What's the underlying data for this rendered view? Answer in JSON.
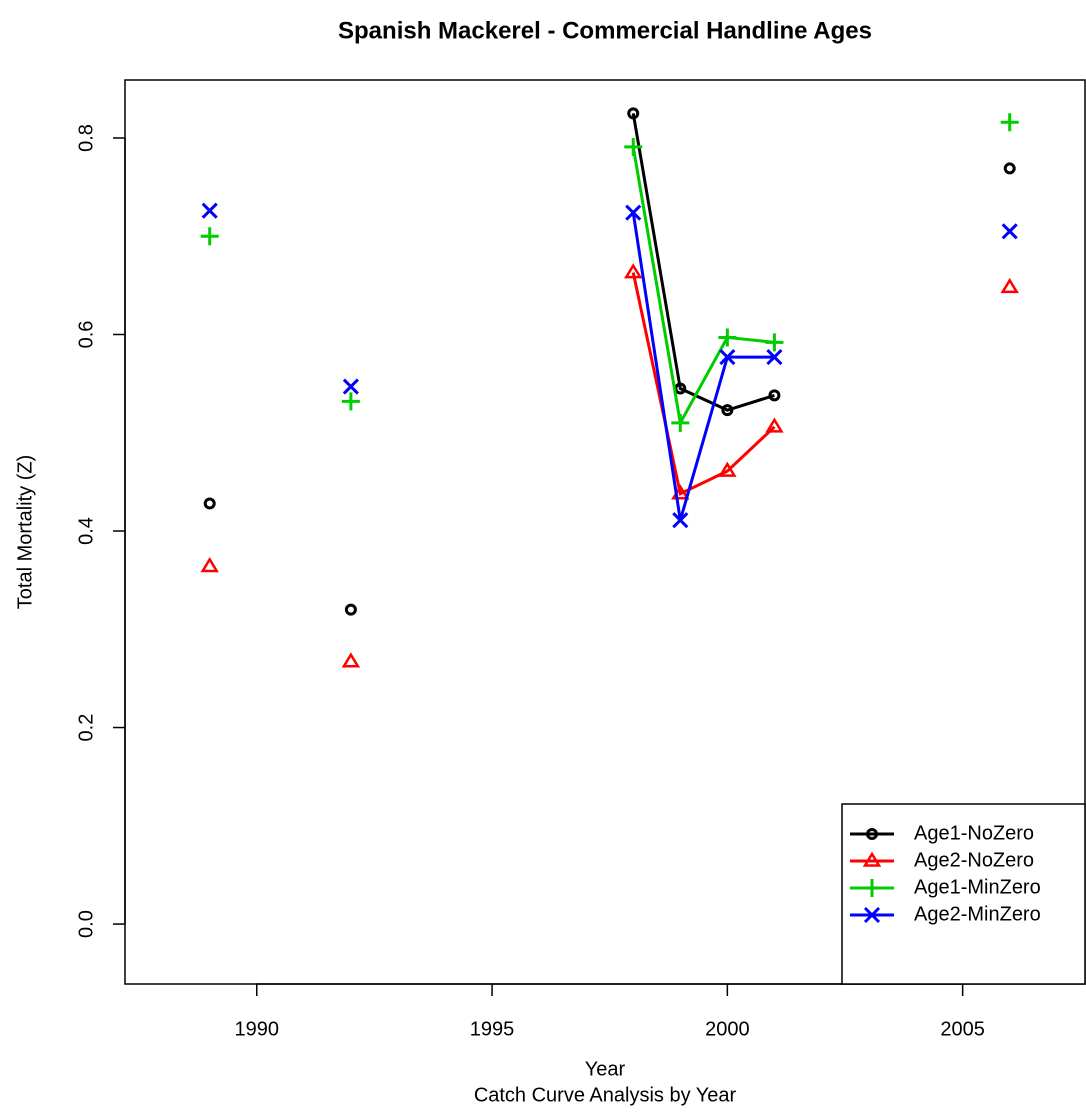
{
  "chart_data": {
    "type": "line",
    "title": "Spanish Mackerel - Commercial Handline Ages",
    "xlabel": "Year",
    "subtitle": "Catch Curve Analysis by Year",
    "ylabel": "Total Mortality (Z)",
    "x": [
      1989,
      1990,
      1991,
      1992,
      1993,
      1994,
      1995,
      1996,
      1997,
      1998,
      1999,
      2000,
      2001,
      2002,
      2003,
      2004,
      2005,
      2006
    ],
    "series": [
      {
        "name": "Age1-NoZero",
        "color": "#000000",
        "marker": "circle",
        "values": [
          0.428,
          null,
          null,
          0.32,
          null,
          null,
          null,
          null,
          null,
          0.825,
          0.545,
          0.523,
          0.538,
          null,
          null,
          null,
          null,
          0.769
        ]
      },
      {
        "name": "Age2-NoZero",
        "color": "#ff0000",
        "marker": "triangle",
        "values": [
          0.364,
          null,
          null,
          0.267,
          null,
          null,
          null,
          null,
          null,
          0.663,
          0.438,
          0.461,
          0.506,
          null,
          null,
          null,
          null,
          0.648
        ]
      },
      {
        "name": "Age1-MinZero",
        "color": "#00cc00",
        "marker": "plus",
        "values": [
          0.7,
          null,
          null,
          0.532,
          null,
          null,
          null,
          null,
          null,
          0.791,
          0.51,
          0.597,
          0.592,
          null,
          null,
          null,
          null,
          0.816
        ]
      },
      {
        "name": "Age2-MinZero",
        "color": "#0000ff",
        "marker": "cross",
        "values": [
          0.726,
          null,
          null,
          0.547,
          null,
          null,
          null,
          null,
          null,
          0.724,
          0.411,
          0.577,
          0.577,
          null,
          null,
          null,
          null,
          0.705
        ]
      }
    ],
    "xlim": [
      1987.2,
      2007.6
    ],
    "ylim": [
      -0.061,
      0.859
    ],
    "xticks": [
      1990,
      1995,
      2000,
      2005
    ],
    "yticks": [
      {
        "value": 0,
        "label": "0.0"
      },
      0.2,
      0.4,
      0.6,
      0.8
    ],
    "legend": "bottomright"
  }
}
